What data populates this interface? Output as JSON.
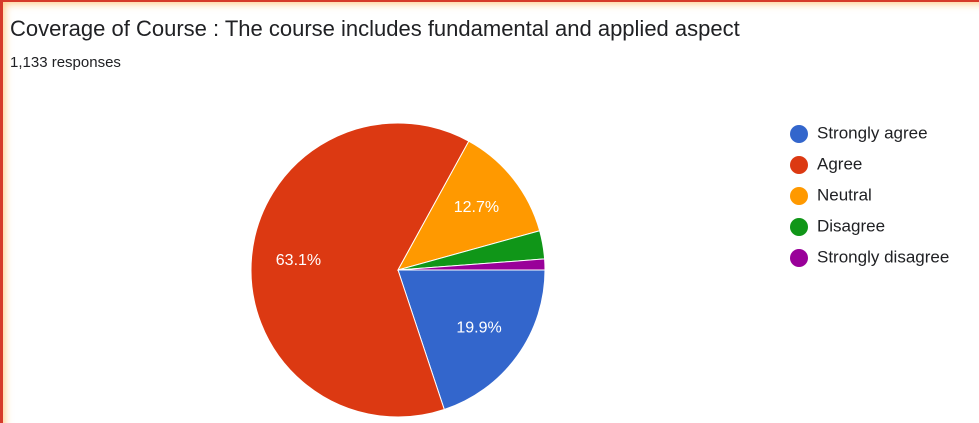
{
  "chart_data": {
    "type": "pie",
    "title": "Coverage of Course : The course includes fundamental and applied aspect",
    "subtitle": "1,133 responses",
    "categories": [
      "Strongly agree",
      "Agree",
      "Neutral",
      "Disagree",
      "Strongly disagree"
    ],
    "values": [
      19.9,
      63.1,
      12.7,
      3.1,
      1.2
    ],
    "value_labels": [
      "19.9%",
      "63.1%",
      "12.7%",
      null,
      null
    ],
    "colors": [
      "#3366cc",
      "#dc3912",
      "#ff9900",
      "#109618",
      "#990099"
    ],
    "legend": "right"
  }
}
